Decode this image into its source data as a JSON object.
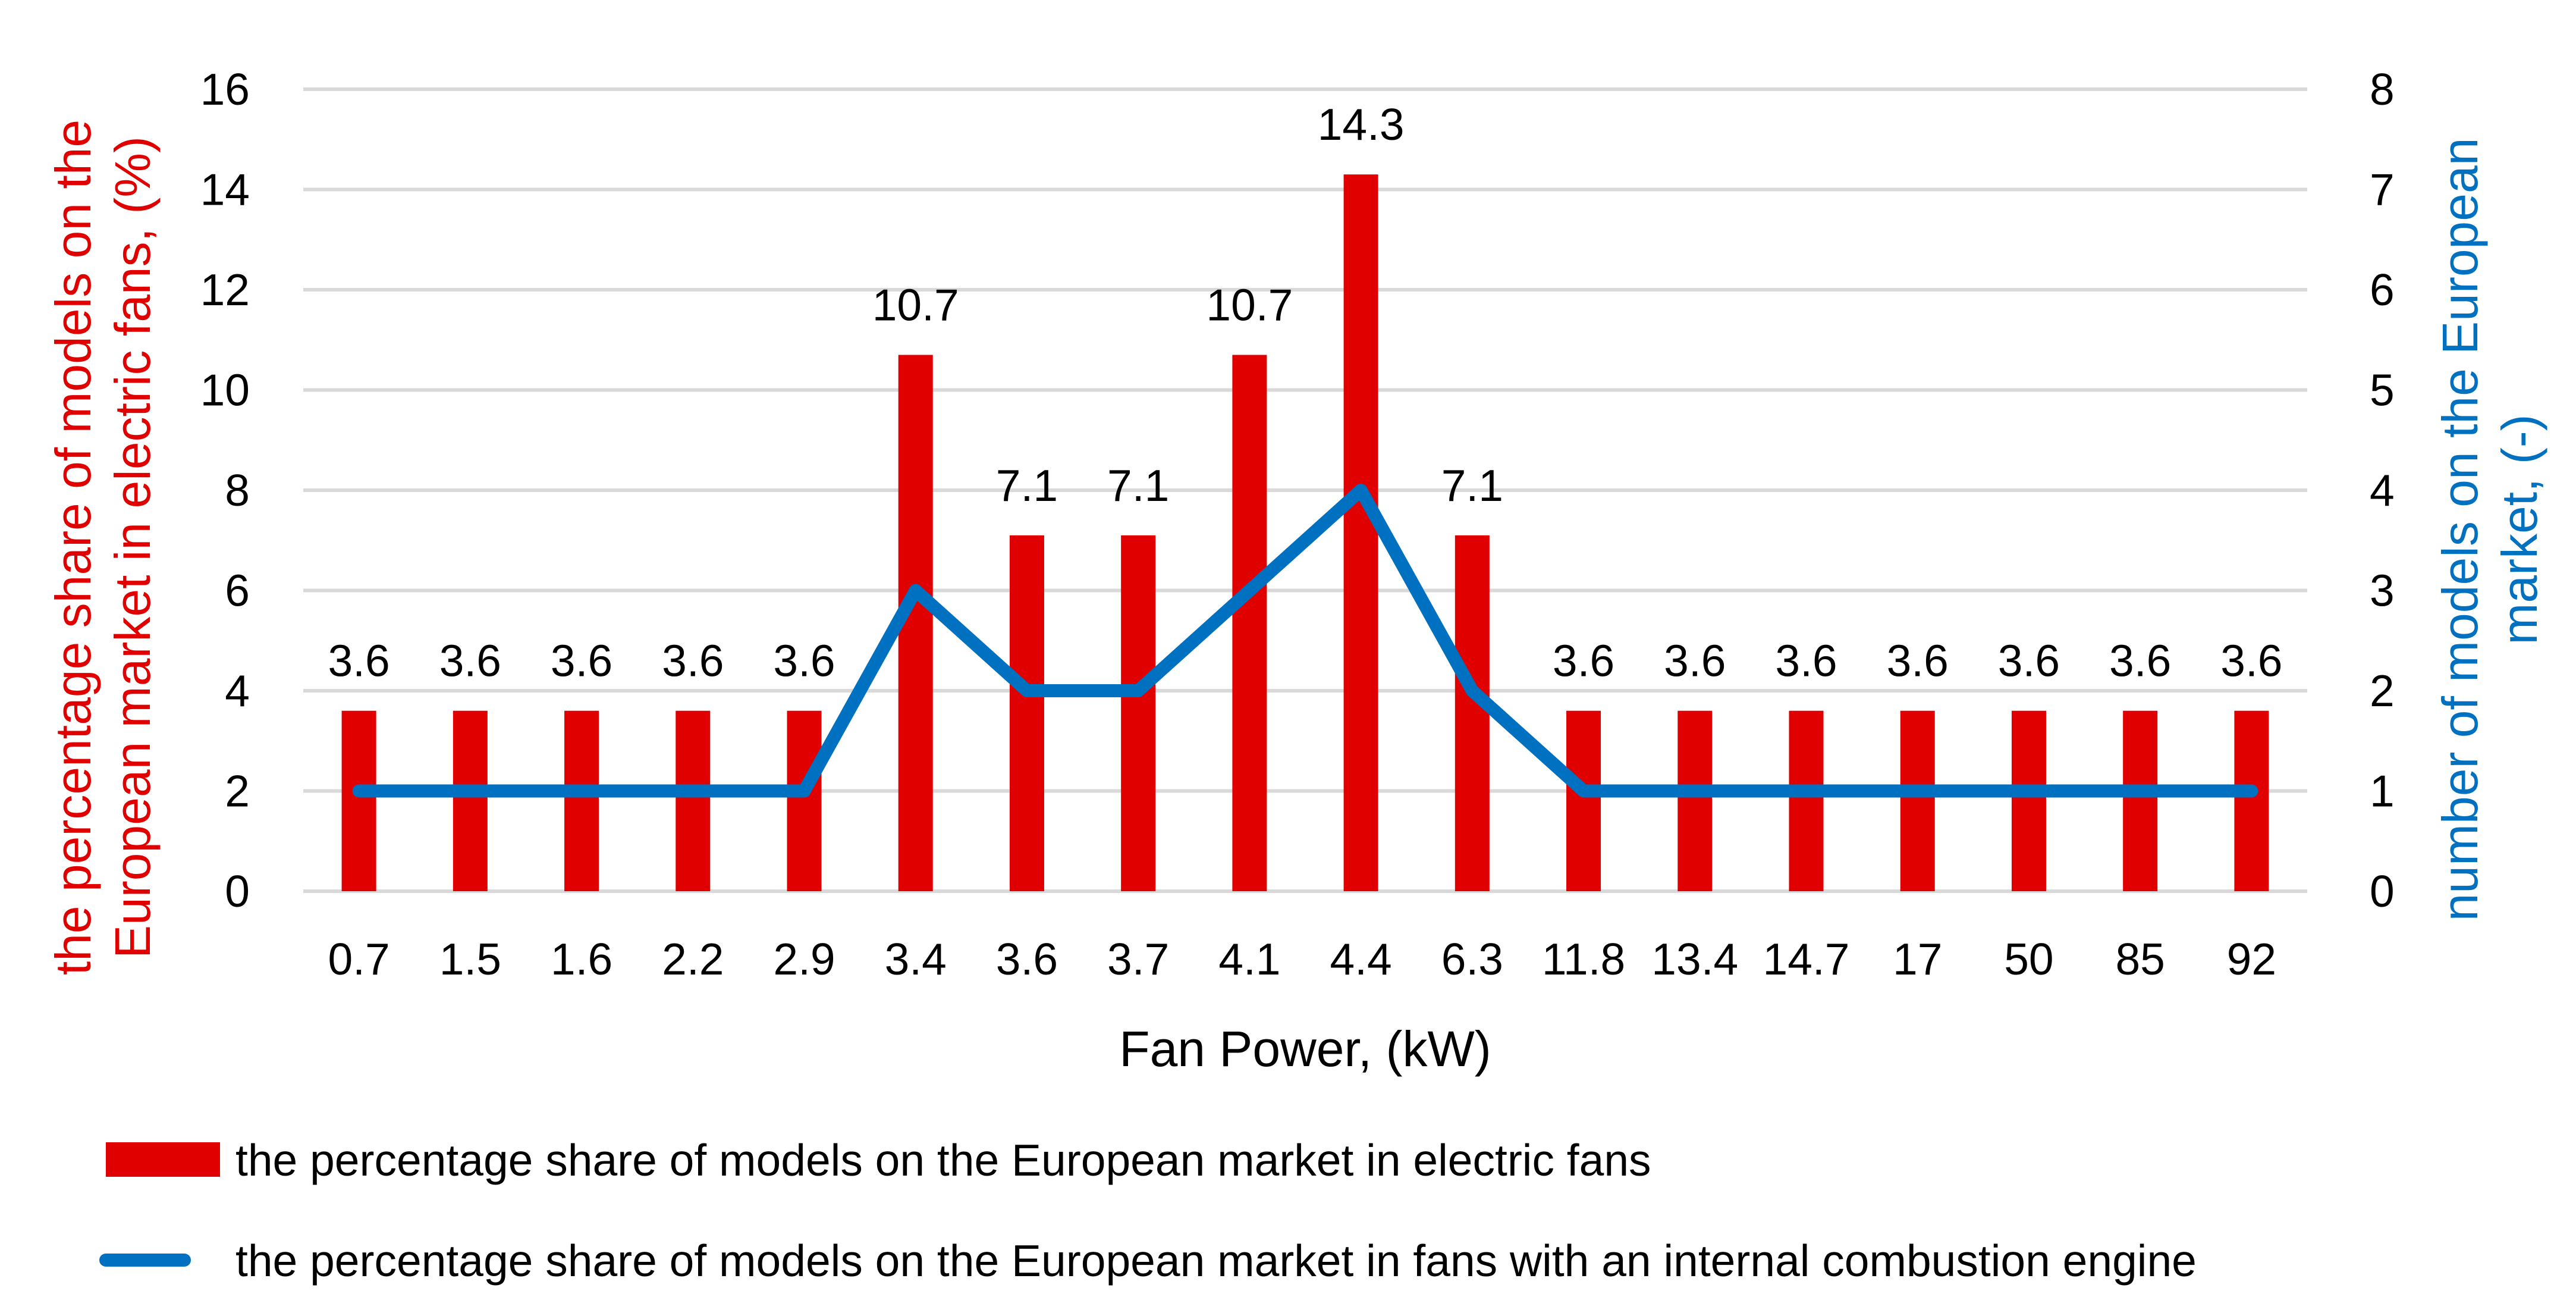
{
  "chart_data": {
    "type": "bar+line",
    "categories": [
      "0.7",
      "1.5",
      "1.6",
      "2.2",
      "2.9",
      "3.4",
      "3.6",
      "3.7",
      "4.1",
      "4.4",
      "6.3",
      "11.8",
      "13.4",
      "14.7",
      "17",
      "50",
      "85",
      "92"
    ],
    "xlabel": "Fan Power, (kW)",
    "series": [
      {
        "name": "the percentage share of models on the European market in electric fans",
        "type": "bar",
        "axis": "left",
        "color": "#e00000",
        "values": [
          3.6,
          3.6,
          3.6,
          3.6,
          3.6,
          10.7,
          7.1,
          7.1,
          10.7,
          14.3,
          7.1,
          3.6,
          3.6,
          3.6,
          3.6,
          3.6,
          3.6,
          3.6
        ],
        "labels": [
          "3.6",
          "3.6",
          "3.6",
          "3.6",
          "3.6",
          "10.7",
          "7.1",
          "7.1",
          "10.7",
          "14.3",
          "7.1",
          "3.6",
          "3.6",
          "3.6",
          "3.6",
          "3.6",
          "3.6",
          "3.6"
        ]
      },
      {
        "name": "the percentage share of models on the European market in fans with an internal combustion engine",
        "type": "line",
        "axis": "right",
        "color": "#0070c0",
        "values": [
          1,
          1,
          1,
          1,
          1,
          3,
          2,
          2,
          3,
          4,
          2,
          1,
          1,
          1,
          1,
          1,
          1,
          1
        ]
      }
    ],
    "y_left": {
      "label_lines": [
        "the percentage share of models on the",
        "European market in electric fans, (%)"
      ],
      "color": "#e00000",
      "range": [
        0,
        16
      ],
      "ticks": [
        0,
        2,
        4,
        6,
        8,
        10,
        12,
        14,
        16
      ]
    },
    "y_right": {
      "label_lines": [
        "number of models on the European",
        "market, (-)"
      ],
      "color": "#0070c0",
      "range": [
        0,
        8
      ],
      "ticks": [
        0,
        1,
        2,
        3,
        4,
        5,
        6,
        7,
        8
      ]
    },
    "grid": true,
    "legend_position": "bottom-left"
  }
}
